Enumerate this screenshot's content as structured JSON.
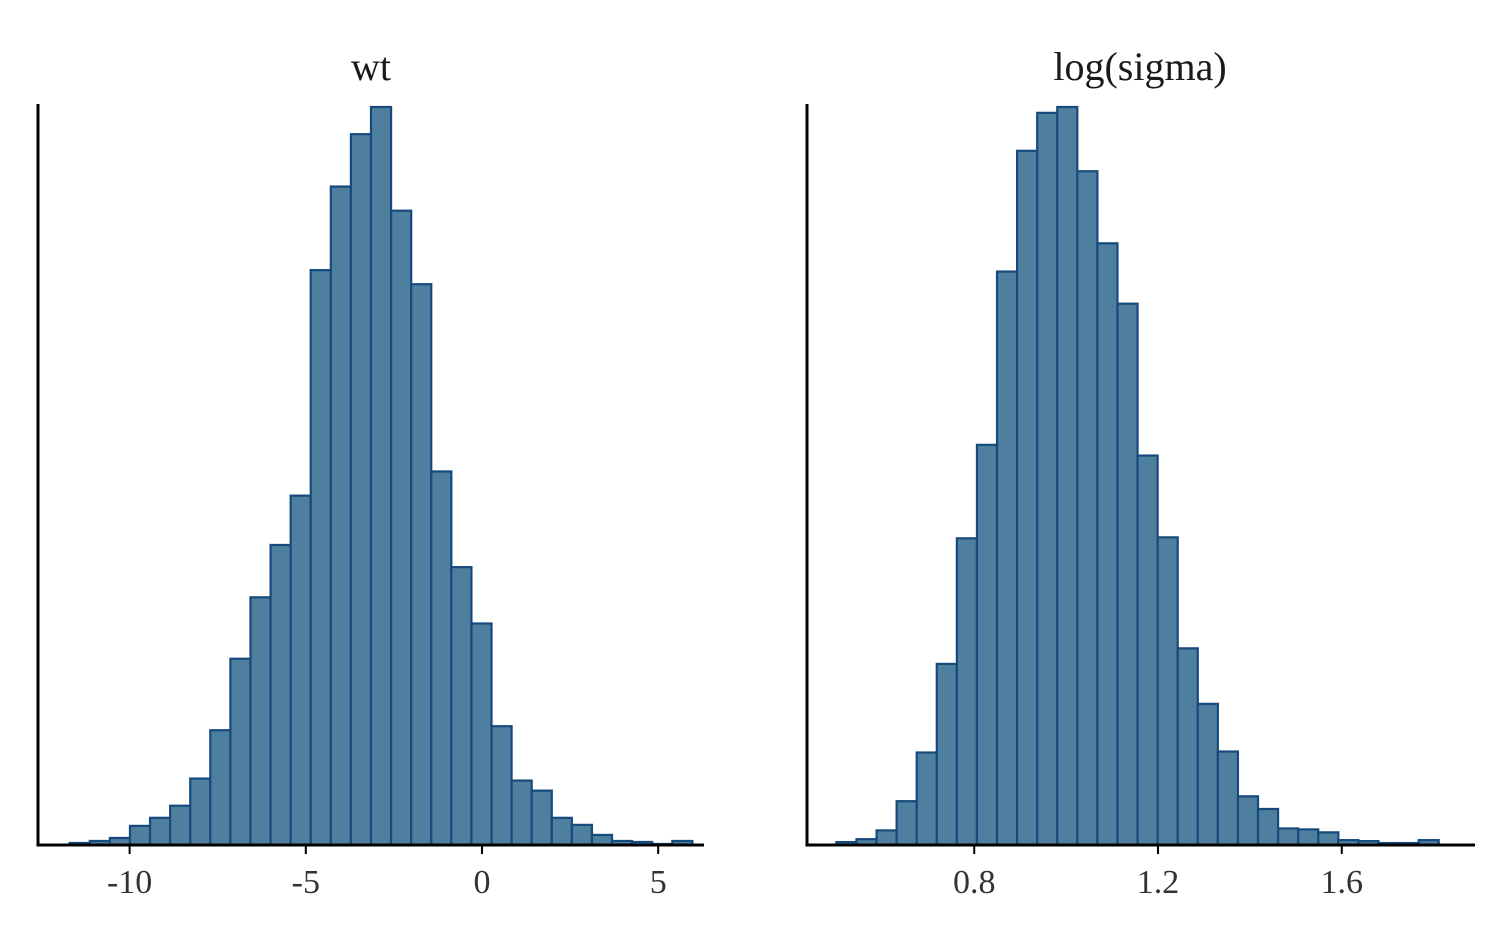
{
  "chart_data": [
    {
      "type": "bar",
      "subtype": "histogram",
      "title": "wt",
      "xlabel": "",
      "ylabel": "",
      "xlim": [
        -12.6,
        6.3
      ],
      "xticks": [
        -10,
        -5,
        0,
        5
      ],
      "xtick_labels": [
        "-10",
        "-5",
        "0",
        "5"
      ],
      "y_axis_labels_shown": false,
      "grid": false,
      "bin_width": 0.57,
      "bin_start": -11.7,
      "counts": [
        2,
        4,
        7,
        19,
        27,
        39,
        66,
        114,
        185,
        246,
        298,
        347,
        571,
        654,
        706,
        733,
        630,
        557,
        371,
        276,
        220,
        118,
        64,
        54,
        27,
        20,
        10,
        4,
        3,
        1,
        4
      ],
      "fill_color": "#4f7f9f",
      "edge_color": "#174a7c"
    },
    {
      "type": "bar",
      "subtype": "histogram",
      "title": "log(sigma)",
      "xlabel": "",
      "ylabel": "",
      "xlim": [
        0.436,
        1.89
      ],
      "xticks": [
        0.8,
        1.2,
        1.6
      ],
      "xtick_labels": [
        "0.8",
        "1.2",
        "1.6"
      ],
      "y_axis_labels_shown": false,
      "grid": false,
      "bin_width": 0.0437,
      "bin_start": 0.5,
      "counts": [
        3,
        6,
        15,
        45,
        95,
        186,
        315,
        411,
        589,
        713,
        752,
        758,
        692,
        618,
        556,
        400,
        316,
        202,
        145,
        96,
        50,
        37,
        17,
        16,
        13,
        5,
        4,
        2,
        2,
        5
      ],
      "fill_color": "#4f7f9f",
      "edge_color": "#174a7c"
    }
  ]
}
